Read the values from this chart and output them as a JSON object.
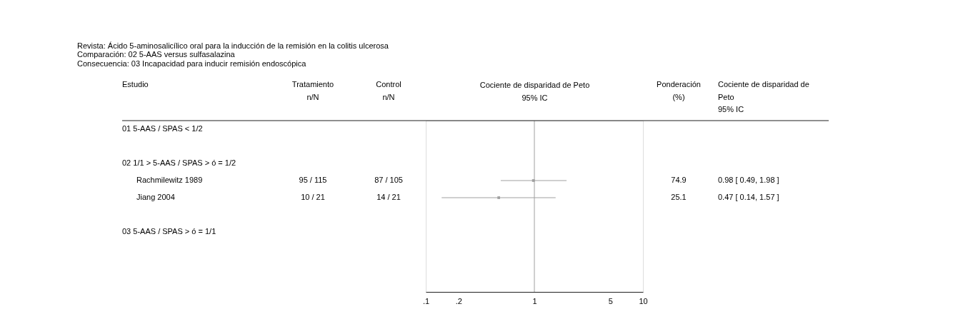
{
  "chart_data": {
    "type": "scatter",
    "orientation": "horizontal",
    "title": "Revista: Ácido 5-aminosalicílico oral para la inducción de la remisión en la colitis ulcerosa",
    "subtitle": "Comparación: 02 5-AAS versus sulfasalazina\nConsecuencia: 03 Incapacidad para inducir remisión endoscópica",
    "xlabel": "Cociente de disparidad de Peto\n95% IC",
    "categories": [
      null,
      null,
      null,
      null,
      null,
      null,
      null,
      null,
      null,
      null
    ],
    "values": [
      null,
      null,
      null,
      0.98,
      0.47,
      null,
      null,
      null,
      null,
      null
    ],
    "errors": [
      null,
      null,
      null,
      [
        0.49,
        1.98
      ],
      [
        0.14,
        1.57
      ],
      null,
      null,
      null,
      null,
      null
    ],
    "color": "#a0a0a0",
    "marker": "square",
    "log": "x",
    "tick_labels": "x",
    "xlim": [
      0.1,
      10
    ],
    "xticks": [
      {
        "value": 0.1,
        "label": ".1"
      },
      {
        "value": 0.2,
        "label": ".2"
      },
      1,
      5,
      10
    ],
    "ref_lines": [
      {
        "axis": "x",
        "value": 1,
        "color": "#a0a0a0"
      }
    ],
    "annotations": [
      "Estudio",
      "Tratamiento\nn/N",
      "Control\nn/N",
      "Ponderación\n(%)",
      "Cociente de disparidad de\nPeto\n95% IC",
      "01 5-AAS / SPAS < 1/2",
      "02 1/1 > 5-AAS / SPAS > ó = 1/2",
      "Rachmilewitz 1989",
      "Jiang 2004",
      "03 5-AAS / SPAS > ó = 1/1",
      "95 / 115",
      "87 / 105",
      "74.9",
      "0.98 [ 0.49, 1.98 ]",
      "10 / 21",
      "14 / 21",
      "25.1",
      "0.47 [ 0.14, 1.57 ]"
    ]
  }
}
